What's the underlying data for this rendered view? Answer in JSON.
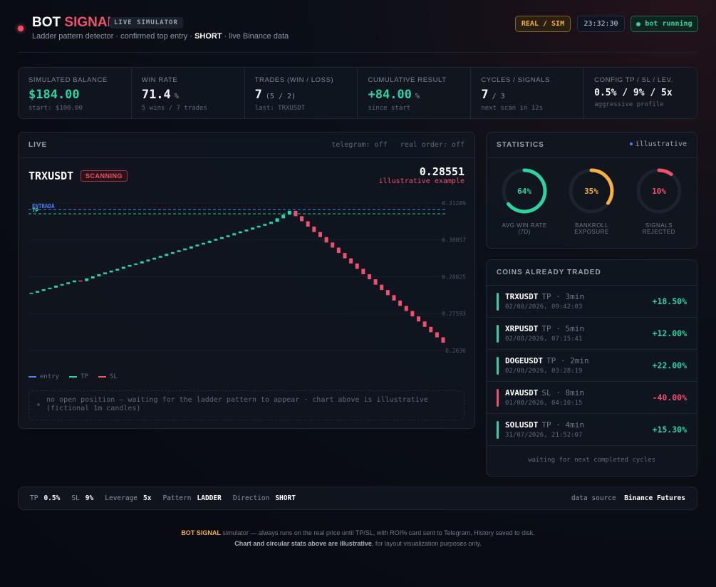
{
  "header": {
    "brand_1": "BOT",
    "brand_2": "SIGNAL",
    "badge": "LIVE SIMULATOR",
    "subtitle_1": "Ladder pattern detector · confirmed top entry · ",
    "subtitle_bold": "SHORT",
    "subtitle_2": " · live Binance data",
    "mode": "REAL / SIM",
    "clock": "23:32:30",
    "status": "bot running"
  },
  "kpis": [
    {
      "label": "SIMULATED BALANCE",
      "value": "$184.00",
      "sub": "start: $100.00",
      "color": "#2ed3a0"
    },
    {
      "label": "WIN RATE",
      "value": "71.4",
      "unit": "%",
      "sub": "5 wins / 7 trades",
      "color": "#f2f4f8"
    },
    {
      "label": "TRADES (WIN / LOSS)",
      "value": "7",
      "unit": "(5 / 2)",
      "sub": "last: TRXUSDT",
      "color": "#f2f4f8"
    },
    {
      "label": "CUMULATIVE RESULT",
      "value": "+84.00",
      "unit": "%",
      "sub": "since start",
      "color": "#2ed3a0"
    },
    {
      "label": "CYCLES / SIGNALS",
      "value": "7",
      "unit": "/ 3",
      "sub": "next scan in 12s",
      "color": "#f2f4f8"
    },
    {
      "label": "CONFIG TP / SL / LEV.",
      "value": "0.5% / 9% / 5x",
      "sub": "aggressive profile",
      "color": "#f2f4f8"
    }
  ],
  "live": {
    "title": "LIVE",
    "telegram": "telegram: off",
    "real_order": "real order: off",
    "symbol": "TRXUSDT",
    "state": "SCANNING",
    "price": "0.28551",
    "price_note": "illustrative example",
    "chart": {
      "type": "candlestick",
      "first_open": 0.2825,
      "close": [
        0.2829,
        0.2835,
        0.2841,
        0.2846,
        0.2853,
        0.2858,
        0.2864,
        0.287,
        0.2868,
        0.2877,
        0.2884,
        0.2891,
        0.2897,
        0.2903,
        0.2909,
        0.2916,
        0.2922,
        0.2927,
        0.2934,
        0.294,
        0.2946,
        0.2952,
        0.2959,
        0.2965,
        0.2971,
        0.2977,
        0.2984,
        0.299,
        0.2996,
        0.3003,
        0.3009,
        0.3015,
        0.3021,
        0.3028,
        0.3034,
        0.304,
        0.3047,
        0.3053,
        0.3059,
        0.3066,
        0.3078,
        0.309,
        0.3103,
        0.3085,
        0.3068,
        0.305,
        0.3032,
        0.3015,
        0.2997,
        0.298,
        0.2962,
        0.2944,
        0.2927,
        0.2909,
        0.2891,
        0.2874,
        0.2856,
        0.2838,
        0.2821,
        0.2803,
        0.2785,
        0.2768,
        0.275,
        0.2733,
        0.2715,
        0.2697,
        0.268,
        0.2662
      ],
      "up_color": "#2ed3a0",
      "down_color": "#f0506e",
      "ylim": [
        0.2636,
        0.31289
      ],
      "yticks": [
        0.31289,
        0.30057,
        0.28825,
        0.27593,
        0.2636
      ],
      "entry": 0.3107,
      "entry_label": "ENTRADA",
      "entry_color": "#4f7cf7",
      "tp": 0.3093,
      "tp_label": "TP",
      "tp_color": "#2ed3a0",
      "legend": [
        {
          "name": "entry",
          "color": "#4f7cf7"
        },
        {
          "name": "TP",
          "color": "#2ed3a0"
        },
        {
          "name": "SL",
          "color": "#f0506e"
        }
      ]
    },
    "notice": "no open position — waiting for the ladder pattern to appear · chart above is illustrative (fictional 1m candles)"
  },
  "statistics": {
    "title": "STATISTICS",
    "tag": "illustrative",
    "values": [
      64,
      35,
      10
    ],
    "value_labels": [
      "64%",
      "35%",
      "10%"
    ],
    "labels": [
      "AVG WIN RATE (7D)",
      "BANKROLL EXPOSURE",
      "SIGNALS REJECTED"
    ],
    "colors": [
      "#2ed3a0",
      "#f5b041",
      "#f0506e"
    ]
  },
  "coins": {
    "title": "COINS ALREADY TRADED",
    "items": [
      {
        "symbol": "TRXUSDT",
        "detail": "TP · 3min",
        "time": "02/08/2026, 09:42:03",
        "pnl": "+18.50%",
        "color": "#2ed3a0"
      },
      {
        "symbol": "XRPUSDT",
        "detail": "TP · 5min",
        "time": "02/08/2026, 07:15:41",
        "pnl": "+12.00%",
        "color": "#2ed3a0"
      },
      {
        "symbol": "DOGEUSDT",
        "detail": "TP · 2min",
        "time": "02/08/2026, 03:28:19",
        "pnl": "+22.00%",
        "color": "#2ed3a0"
      },
      {
        "symbol": "AVAUSDT",
        "detail": "SL · 8min",
        "time": "01/08/2026, 04:10:15",
        "pnl": "-40.00%",
        "color": "#f0506e"
      },
      {
        "symbol": "SOLUSDT",
        "detail": "TP · 4min",
        "time": "31/07/2026, 21:52:07",
        "pnl": "+15.30%",
        "color": "#2ed3a0"
      }
    ],
    "footer": "waiting for next completed cycles"
  },
  "bar": {
    "items": [
      {
        "label": "TP",
        "value": "0.5%"
      },
      {
        "label": "SL",
        "value": "9%"
      },
      {
        "label": "Leverage",
        "value": "5x"
      },
      {
        "label": "Pattern",
        "value": "LADDER"
      },
      {
        "label": "Direction",
        "value": "SHORT"
      }
    ],
    "source_label": "data source",
    "source": "Binance Futures"
  },
  "footer": {
    "brand": "BOT SIGNAL",
    "line_1": " simulator — always runs on the real price until TP/SL, with ROI% card sent to Telegram. History saved to disk.",
    "line_2_bold": "Chart and circular stats above are illustrative",
    "line_2": ", for layout visualization purposes only."
  }
}
